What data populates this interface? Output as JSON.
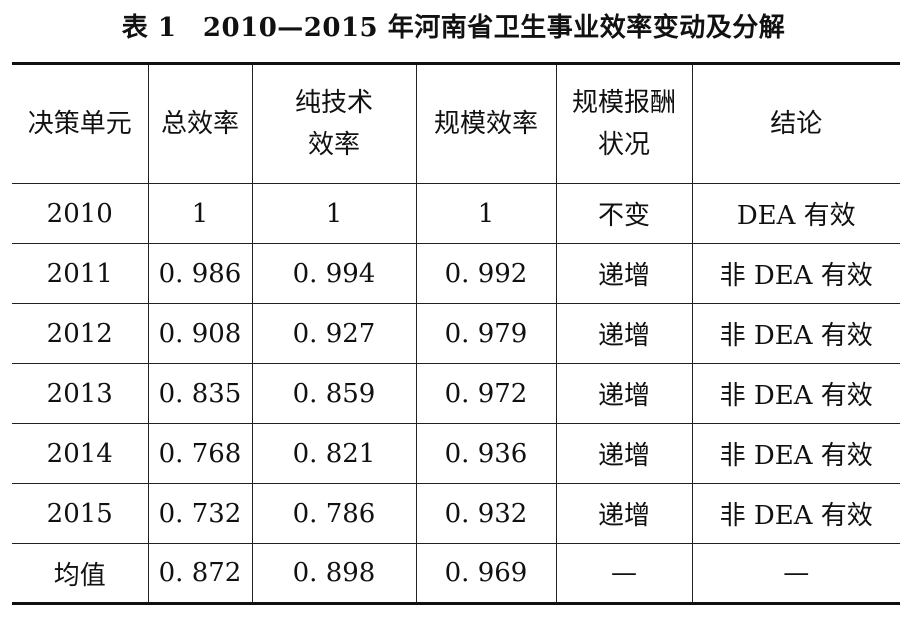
{
  "caption": "表 1　2010—2015 年河南省卫生事业效率变动及分解",
  "table": {
    "headers": [
      {
        "line1": "决策单元",
        "line2": ""
      },
      {
        "line1": "总效率",
        "line2": ""
      },
      {
        "line1": "纯技术",
        "line2": "效率"
      },
      {
        "line1": "规模效率",
        "line2": ""
      },
      {
        "line1": "规模报酬",
        "line2": "状况"
      },
      {
        "line1": "结论",
        "line2": ""
      }
    ],
    "rows": [
      [
        "2010",
        "1",
        "1",
        "1",
        "不变",
        "DEA 有效"
      ],
      [
        "2011",
        "0. 986",
        "0. 994",
        "0. 992",
        "递增",
        "非 DEA 有效"
      ],
      [
        "2012",
        "0. 908",
        "0. 927",
        "0. 979",
        "递增",
        "非 DEA 有效"
      ],
      [
        "2013",
        "0. 835",
        "0. 859",
        "0. 972",
        "递增",
        "非 DEA 有效"
      ],
      [
        "2014",
        "0. 768",
        "0. 821",
        "0. 936",
        "递增",
        "非 DEA 有效"
      ],
      [
        "2015",
        "0. 732",
        "0. 786",
        "0. 932",
        "递增",
        "非 DEA 有效"
      ],
      [
        "均值",
        "0. 872",
        "0. 898",
        "0. 969",
        "—",
        "—"
      ]
    ]
  }
}
